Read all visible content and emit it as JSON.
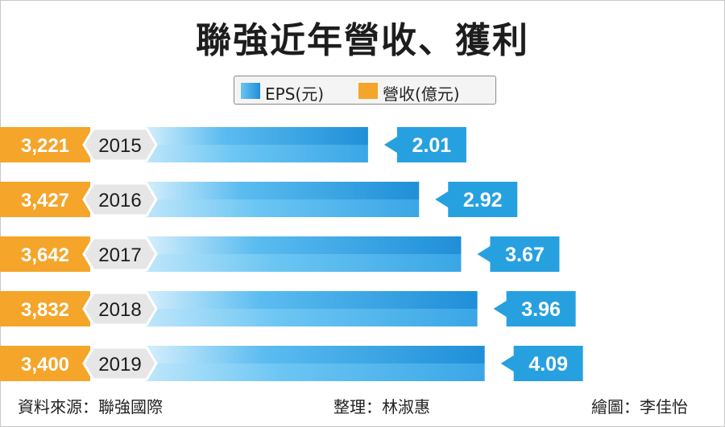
{
  "title": "聯強近年營收、獲利",
  "legend": {
    "eps": "EPS(元)",
    "revenue": "營收(億元)"
  },
  "colors": {
    "revenue": "#f4a52a",
    "eps_dark": "#1f8fd8",
    "eps_light": "#bfe6fb",
    "eps_label": "#27a0e0",
    "year_tag": "#e6e6e6"
  },
  "chart_data": {
    "type": "bar",
    "orientation": "horizontal",
    "title": "聯強近年營收、獲利",
    "categories": [
      "2015",
      "2016",
      "2017",
      "2018",
      "2019"
    ],
    "series": [
      {
        "name": "EPS(元)",
        "values": [
          2.01,
          2.92,
          3.67,
          3.96,
          4.09
        ],
        "labels": [
          "2.01",
          "2.92",
          "3.67",
          "3.96",
          "4.09"
        ]
      },
      {
        "name": "營收(億元)",
        "values": [
          3221,
          3427,
          3642,
          3832,
          3400
        ],
        "labels": [
          "3,221",
          "3,427",
          "3,642",
          "3,832",
          "3,400"
        ]
      }
    ],
    "legend_position": "top-center",
    "grid": false
  },
  "footer": {
    "source": "資料來源：聯強國際",
    "editor": "整理：林淑惠",
    "designer": "繪圖：李佳怡"
  }
}
